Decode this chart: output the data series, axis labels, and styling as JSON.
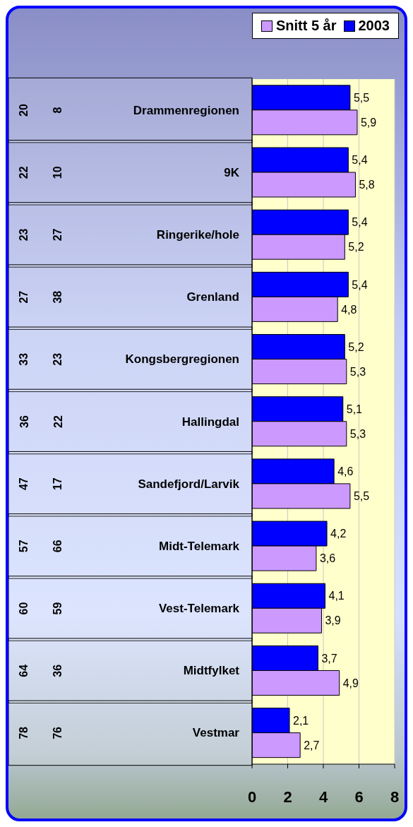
{
  "chart_data": {
    "type": "bar",
    "orientation": "horizontal",
    "categories": [
      "Drammenregionen",
      "9K",
      "Ringerike/hole",
      "Grenland",
      "Kongsbergregionen",
      "Hallingdal",
      "Sandefjord/Larvik",
      "Midt-Telemark",
      "Vest-Telemark",
      "Midtfylket",
      "Vestmar"
    ],
    "series": [
      {
        "name": "2003",
        "color": "#0000ff",
        "values": [
          5.5,
          5.4,
          5.4,
          5.4,
          5.2,
          5.1,
          4.6,
          4.2,
          4.1,
          3.7,
          2.1
        ],
        "value_labels": [
          "5,5",
          "5,4",
          "5,4",
          "5,4",
          "5,2",
          "5,1",
          "4,6",
          "4,2",
          "4,1",
          "3,7",
          "2,1"
        ]
      },
      {
        "name": "Snitt 5 år",
        "color": "#cc99ff",
        "values": [
          5.9,
          5.8,
          5.2,
          4.8,
          5.3,
          5.3,
          5.5,
          3.6,
          3.9,
          4.9,
          2.7
        ],
        "value_labels": [
          "5,9",
          "5,8",
          "5,2",
          "4,8",
          "5,3",
          "5,3",
          "5,5",
          "3,6",
          "3,9",
          "4,9",
          "2,7"
        ]
      }
    ],
    "xlim": [
      0,
      8
    ],
    "xticks": [
      0,
      2,
      4,
      6,
      8
    ],
    "grid": "x",
    "legend": "top right",
    "annotations": [
      "20",
      "8",
      "22",
      "10",
      "23",
      "27",
      "27",
      "38",
      "33",
      "23",
      "36",
      "22",
      "47",
      "17",
      "57",
      "66",
      "60",
      "59",
      "64",
      "36",
      "78",
      "76"
    ]
  }
}
